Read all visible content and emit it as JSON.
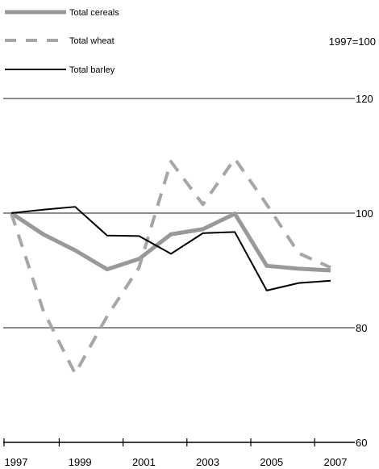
{
  "chart_data": {
    "type": "line",
    "index_note": "1997=100",
    "x": [
      1997,
      1998,
      1999,
      2000,
      2001,
      2002,
      2003,
      2004,
      2005,
      2006,
      2007
    ],
    "x_tick_labels": [
      "1997",
      "1999",
      "2001",
      "2003",
      "2005",
      "2007"
    ],
    "y_tick_labels": [
      "60",
      "80",
      "100",
      "120"
    ],
    "ylim": [
      60,
      120
    ],
    "xlim": [
      1997,
      2007
    ],
    "grid": true,
    "legend_position": "top-left",
    "series": [
      {
        "name": "Total cereals",
        "color": "#999999",
        "style": "solid-thick",
        "values": [
          100,
          96.3,
          93.5,
          90.2,
          92.0,
          96.3,
          97.2,
          99.9,
          90.8,
          90.3,
          90.0
        ]
      },
      {
        "name": "Total wheat",
        "color": "#a6a6a6",
        "style": "dashed",
        "values": [
          100,
          83,
          72,
          82,
          90.5,
          109,
          101.5,
          109.5,
          101.5,
          93,
          90.5
        ]
      },
      {
        "name": "Total barley",
        "color": "#000000",
        "style": "solid-thin",
        "values": [
          100,
          100.6,
          101.1,
          96.1,
          96.0,
          92.9,
          96.5,
          96.7,
          86.5,
          87.8,
          88.2
        ]
      }
    ]
  }
}
